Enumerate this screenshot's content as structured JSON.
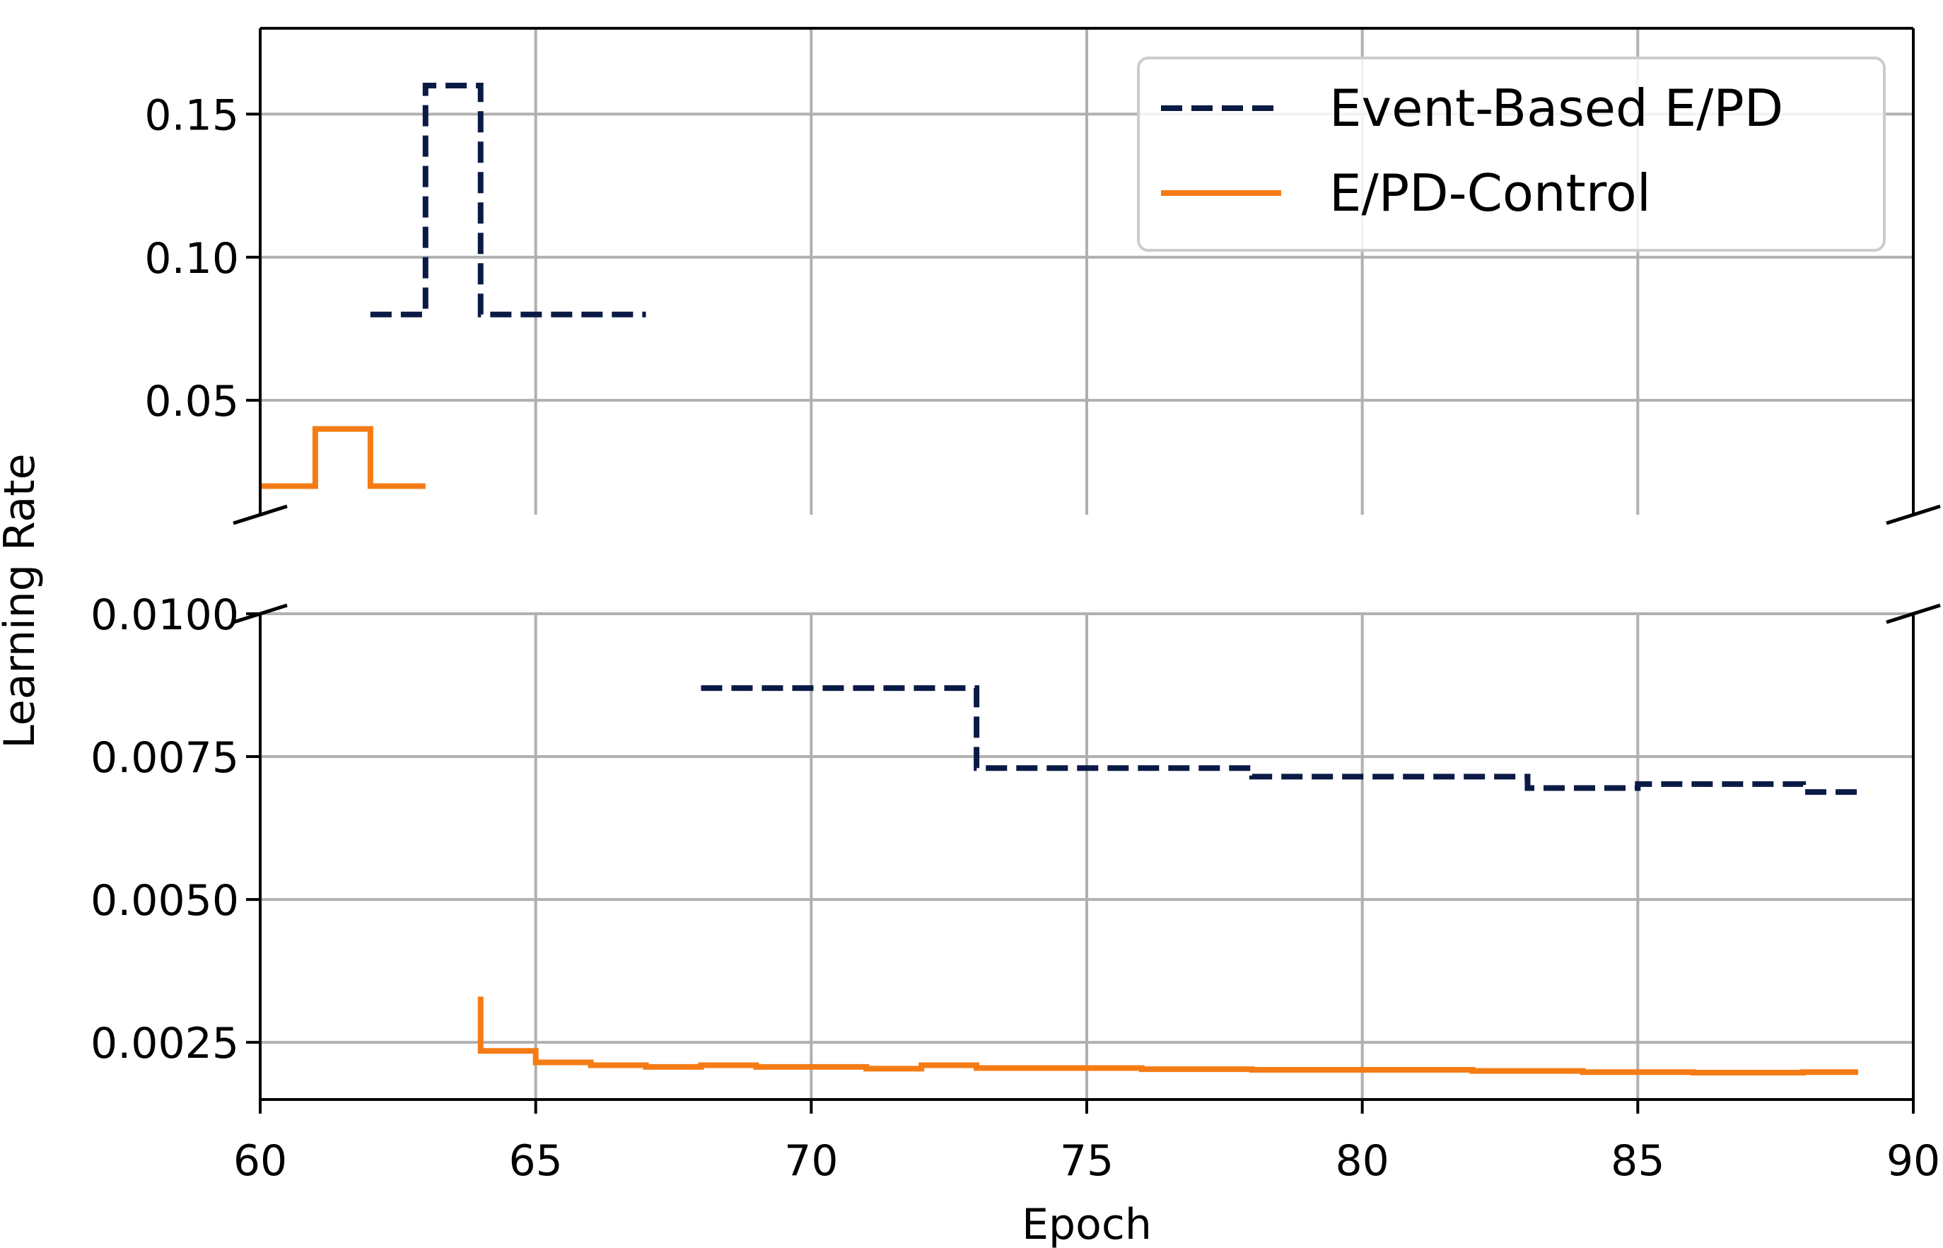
{
  "chart_data": {
    "type": "line",
    "xlabel": "Epoch",
    "ylabel": "Learning Rate",
    "xlim": [
      60,
      90
    ],
    "x_ticks": [
      "60",
      "65",
      "70",
      "75",
      "80",
      "85",
      "90"
    ],
    "y_axis_broken": true,
    "panels": [
      {
        "id": "top",
        "ylim": [
          0.01,
          0.18
        ],
        "y_ticks": [
          "0.05",
          "0.10",
          "0.15"
        ]
      },
      {
        "id": "bottom",
        "ylim": [
          0.0015,
          0.01
        ],
        "y_ticks": [
          "0.0025",
          "0.0050",
          "0.0075",
          "0.0100"
        ]
      }
    ],
    "grid": true,
    "legend": {
      "position": "top-right"
    },
    "series": [
      {
        "name": "Event-Based E/PD",
        "color": "#0b1a45",
        "line_style": "dashed",
        "step": "post",
        "segments": [
          {
            "x": [
              62,
              63,
              64,
              67
            ],
            "y": [
              0.08,
              0.16,
              0.08,
              0.08
            ]
          },
          {
            "x": [
              68,
              73,
              78,
              83,
              85,
              88,
              89
            ],
            "y": [
              0.0087,
              0.0073,
              0.00715,
              0.00695,
              0.00702,
              0.00688,
              0.00688
            ]
          }
        ]
      },
      {
        "name": "E/PD-Control",
        "color": "#f57c15",
        "line_style": "solid",
        "step": "post",
        "segments": [
          {
            "x": [
              60,
              61,
              62,
              63
            ],
            "y": [
              0.02,
              0.04,
              0.02,
              0.02
            ]
          },
          {
            "x": [
              64,
              64,
              65,
              66,
              67,
              68,
              69,
              71,
              72,
              73,
              76,
              78,
              82,
              84,
              86,
              88,
              89
            ],
            "y": [
              0.0033,
              0.00235,
              0.00215,
              0.0021,
              0.00207,
              0.0021,
              0.00207,
              0.00204,
              0.0021,
              0.00205,
              0.00203,
              0.00202,
              0.002,
              0.00198,
              0.00197,
              0.00198,
              0.00198
            ]
          }
        ]
      }
    ]
  }
}
